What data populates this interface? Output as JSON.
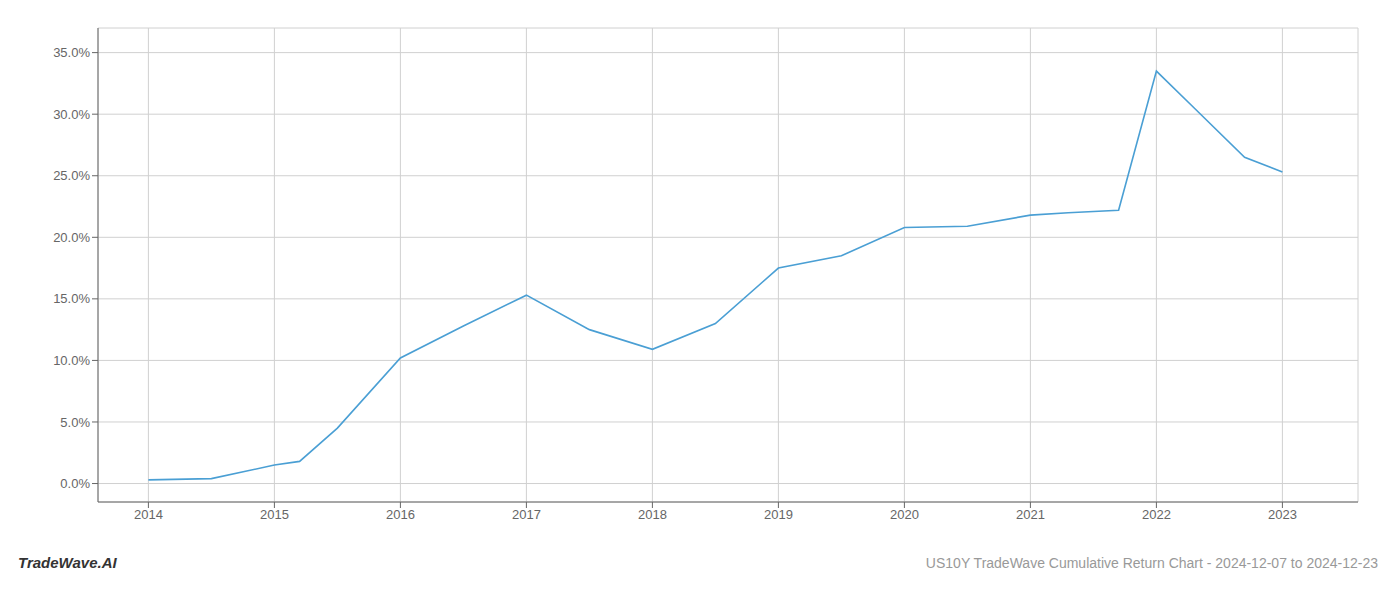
{
  "chart_data": {
    "type": "line",
    "title": "US10Y TradeWave Cumulative Return Chart - 2024-12-07 to 2024-12-23",
    "annotations": [
      "TradeWave.AI"
    ],
    "x": [
      2014,
      2014.5,
      2015,
      2015.2,
      2015.5,
      2016,
      2016.5,
      2017,
      2017.5,
      2018,
      2018.5,
      2019,
      2019.5,
      2020,
      2020.5,
      2021,
      2021.3,
      2021.7,
      2022,
      2022.3,
      2022.7,
      2023
    ],
    "values": [
      0.3,
      0.4,
      1.5,
      1.8,
      4.5,
      10.2,
      12.8,
      15.3,
      12.5,
      10.9,
      13.0,
      17.5,
      18.5,
      20.8,
      20.9,
      21.8,
      22.0,
      22.2,
      33.5,
      30.5,
      26.5,
      25.3
    ],
    "color": "#4a9fd4",
    "xlim": [
      2013.6,
      2023.6
    ],
    "ylim": [
      -1.5,
      37
    ],
    "xticks": [
      2014,
      2015,
      2016,
      2017,
      2018,
      2019,
      2020,
      2021,
      2022,
      2023
    ],
    "yticks": [
      {
        "value": 0,
        "label": "0.0%"
      },
      {
        "value": 5,
        "label": "5.0%"
      },
      {
        "value": 10,
        "label": "10.0%"
      },
      {
        "value": 15,
        "label": "15.0%"
      },
      {
        "value": 20,
        "label": "20.0%"
      },
      {
        "value": 25,
        "label": "25.0%"
      },
      {
        "value": 30,
        "label": "30.0%"
      },
      {
        "value": 35,
        "label": "35.0%"
      }
    ],
    "grid": true
  }
}
